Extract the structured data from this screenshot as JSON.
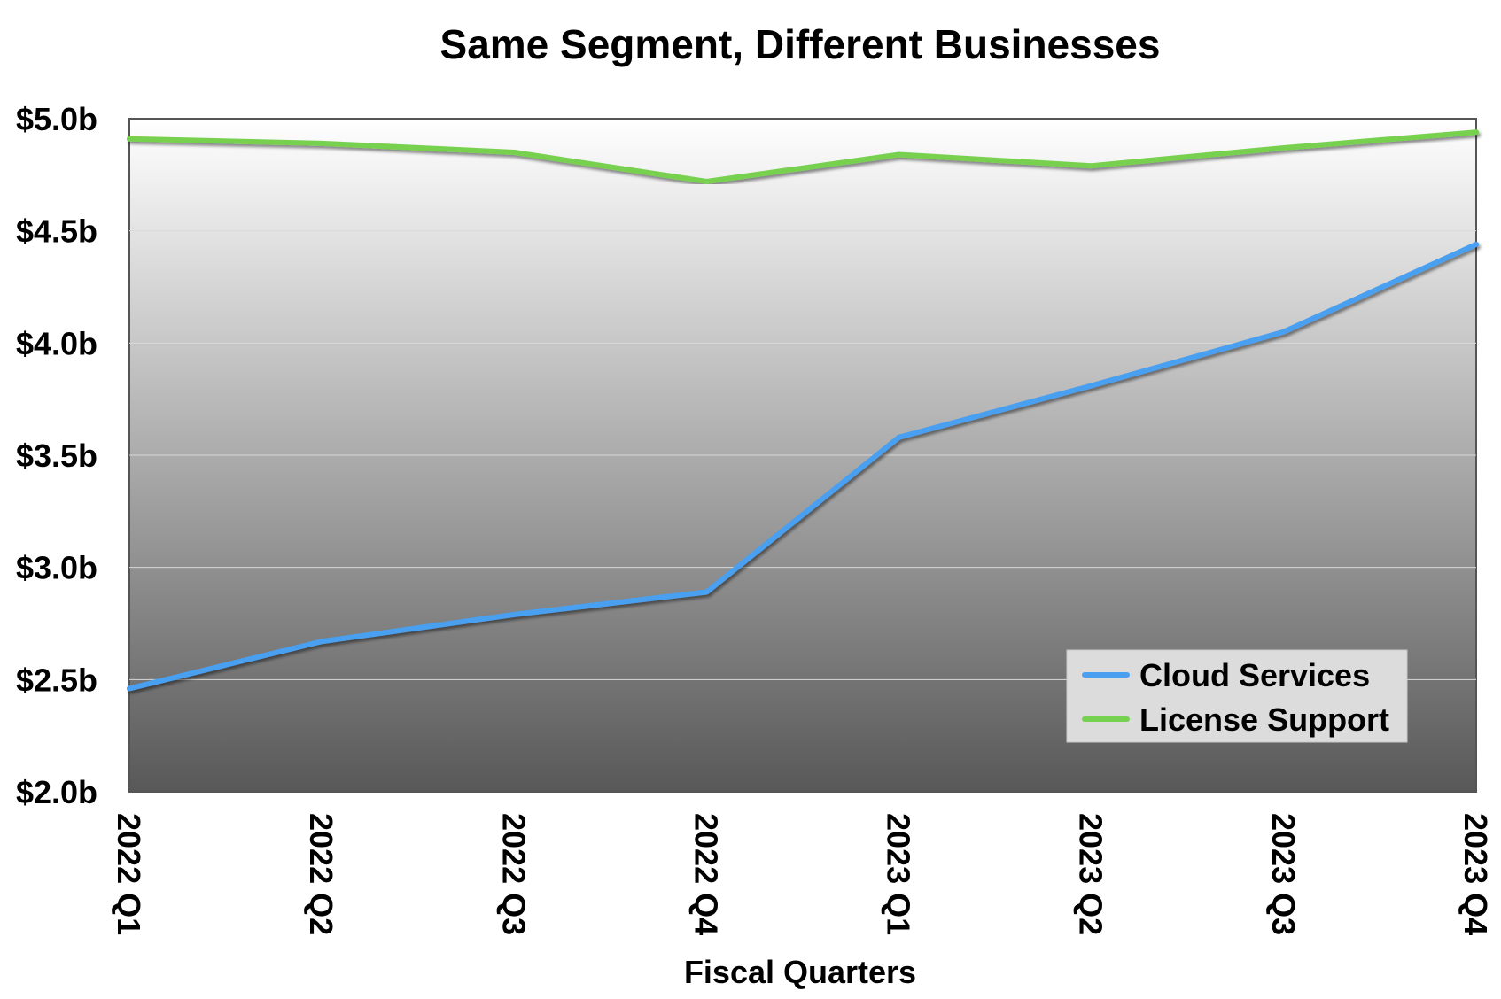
{
  "chart_data": {
    "type": "line",
    "title": "Same Segment, Different Businesses",
    "xlabel": "Fiscal Quarters",
    "ylabel": "",
    "categories": [
      "2022 Q1",
      "2022 Q2",
      "2022 Q3",
      "2022 Q4",
      "2023 Q1",
      "2023 Q2",
      "2023 Q3",
      "2023 Q4"
    ],
    "ylim": [
      2.0,
      5.0
    ],
    "yticks": [
      2.0,
      2.5,
      3.0,
      3.5,
      4.0,
      4.5,
      5.0
    ],
    "ytick_labels": [
      "$2.0b",
      "$2.5b",
      "$3.0b",
      "$3.5b",
      "$4.0b",
      "$4.5b",
      "$5.0b"
    ],
    "series": [
      {
        "name": "Cloud Services",
        "color": "#4a9ff0",
        "values": [
          2.46,
          2.67,
          2.79,
          2.89,
          3.58,
          3.81,
          4.05,
          4.44
        ]
      },
      {
        "name": "License Support",
        "color": "#77d150",
        "values": [
          4.91,
          4.89,
          4.85,
          4.72,
          4.84,
          4.79,
          4.87,
          4.94
        ]
      }
    ],
    "grid": true,
    "legend_position": "bottom-right"
  }
}
